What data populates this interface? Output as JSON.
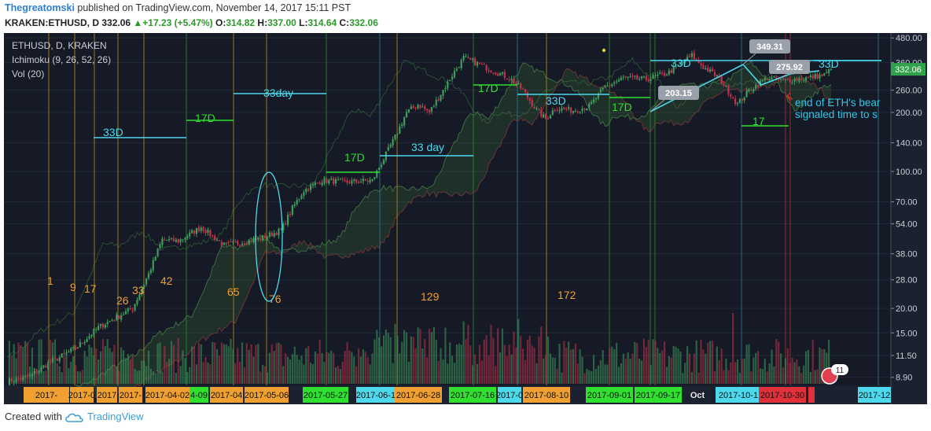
{
  "header": {
    "author": "Thegreatomski",
    "published_text": "published on TradingView.com, November 14, 2017 15:11 PST",
    "symbol": "KRAKEN:ETHUSD, D",
    "last": "332.06",
    "change": "+17.23 (+5.47%)",
    "o_label": "O:",
    "o": "314.82",
    "h_label": "H:",
    "h": "337.00",
    "l_label": "L:",
    "l": "314.64",
    "c_label": "C:",
    "c": "332.06"
  },
  "legend": {
    "line1": "ETHUSD, D, KRAKEN",
    "line2": "Ichimoku (9, 26, 52, 26)",
    "line3": "Vol (20)"
  },
  "footer": {
    "created_with": "Created with",
    "brand": "TradingView"
  },
  "colors": {
    "background": "#151a26",
    "up": "#3f9c5c",
    "down": "#c2324a",
    "cyan": "#4dd8ec",
    "green": "#2fe02f",
    "orange": "#f0a030",
    "yellow_vline": "#b08a1c",
    "red_vline": "#b03030",
    "axis_text": "#c8ccd4",
    "annotation_note": "#30c8e8",
    "arrow": "#e03030",
    "price_tag": "#2fa24a"
  },
  "chart_data": {
    "type": "candlestick",
    "yscale": "log",
    "ylim": [
      8.4,
      490
    ],
    "price_ticks": [
      "480.00",
      "360.00",
      "260.00",
      "200.00",
      "140.00",
      "100.00",
      "70.00",
      "54.00",
      "38.00",
      "28.00",
      "20.00",
      "15.00",
      "11.50",
      "8.90"
    ],
    "last_price_tag": "332.06",
    "date_labels": [
      {
        "text": "2017-",
        "bg": "#f0a030"
      },
      {
        "text": "2017-0",
        "bg": "#f0a030"
      },
      {
        "text": "2017",
        "bg": "#f0a030"
      },
      {
        "text": "2017-",
        "bg": "#f0a030"
      },
      {
        "text": "2017-04-02",
        "bg": "#f0a030"
      },
      {
        "text": "4-09",
        "bg": "#2fe02f"
      },
      {
        "text": "2017-04",
        "bg": "#f0a030"
      },
      {
        "text": "2017-05-06",
        "bg": "#f0a030"
      },
      {
        "text": "2017-05-27",
        "bg": "#2fe02f"
      },
      {
        "text": "2017-06-1",
        "bg": "#4dd8ec"
      },
      {
        "text": "2017-06-28",
        "bg": "#f0a030"
      },
      {
        "text": "2017-07-16",
        "bg": "#2fe02f"
      },
      {
        "text": "2017-0",
        "bg": "#4dd8ec"
      },
      {
        "text": "2017-08-10",
        "bg": "#f0a030"
      },
      {
        "text": "2017-09-01",
        "bg": "#2fe02f"
      },
      {
        "text": "2017-09-17",
        "bg": "#2fe02f"
      },
      {
        "text": "Oct",
        "bg": ""
      },
      {
        "text": "2017-10-1",
        "bg": "#4dd8ec"
      },
      {
        "text": "2017-10-30",
        "bg": "#e0303a"
      },
      {
        "text": "",
        "bg": "#e0303a"
      },
      {
        "text": "2017-12",
        "bg": "#4dd8ec"
      }
    ],
    "cycle_labels": [
      "1",
      "9",
      "17",
      "26",
      "33",
      "42",
      "65",
      "76",
      "129",
      "172"
    ],
    "segment_labels": [
      {
        "text": "33D",
        "color": "#4dd8ec"
      },
      {
        "text": "17D",
        "color": "#2fe02f"
      },
      {
        "text": "33day",
        "color": "#4dd8ec"
      },
      {
        "text": "17D",
        "color": "#2fe02f"
      },
      {
        "text": "33 day",
        "color": "#4dd8ec"
      },
      {
        "text": "17D",
        "color": "#2fe02f"
      },
      {
        "text": "33D",
        "color": "#4dd8ec"
      },
      {
        "text": "17D",
        "color": "#2fe02f"
      },
      {
        "text": "33D",
        "color": "#4dd8ec"
      },
      {
        "text": "33D",
        "color": "#4dd8ec"
      },
      {
        "text": "17",
        "color": "#2fe02f"
      }
    ],
    "callouts": [
      "349.31",
      "275.92",
      "203.15"
    ],
    "annotation": {
      "line1": "end of ETH's bear",
      "line2": "signaled time to s"
    },
    "event_badge": "11"
  }
}
